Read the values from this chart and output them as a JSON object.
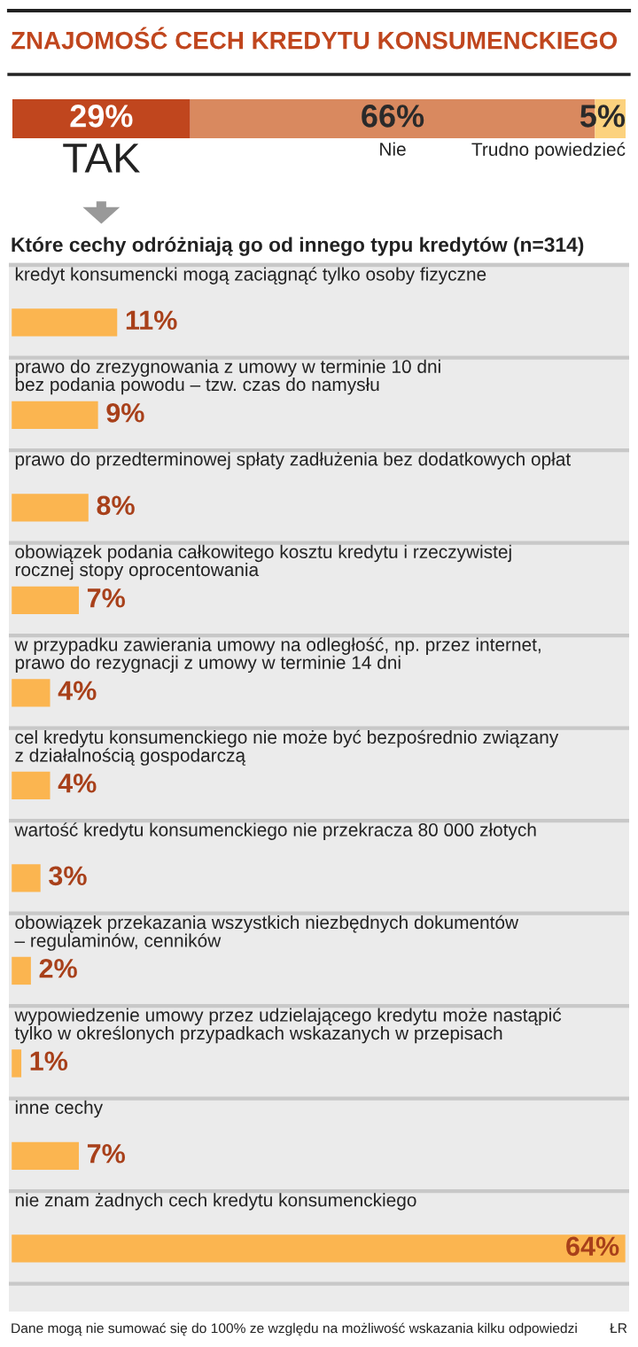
{
  "chart_data": [
    {
      "type": "bar",
      "orientation": "horizontal",
      "stacked": true,
      "title": "ZNAJOMOŚĆ CECH KREDYTU KONSUMENCKIEGO",
      "categories": [
        null
      ],
      "tick_labels": false,
      "grid": false,
      "legend": false,
      "series": [
        {
          "name": "TAK",
          "color": "#c0461e",
          "values": [
            29
          ],
          "value_labels": [
            "29%"
          ]
        },
        {
          "name": "Nie",
          "color": "#d9895f",
          "values": [
            66
          ],
          "value_labels": [
            "66%"
          ]
        },
        {
          "name": "Trudno powiedzieć",
          "color": "#fcd27e",
          "values": [
            5
          ],
          "value_labels": [
            "5%"
          ]
        }
      ]
    },
    {
      "type": "bar",
      "orientation": "horizontal",
      "title": "Które cechy odróżniają go od innego typu kredytów (n=314)",
      "tick_labels": false,
      "grid": false,
      "legend": false,
      "categories": [
        "kredyt konsumencki mogą zaciągnąć tylko osoby fizyczne",
        "prawo do zrezygnowania z umowy w terminie 10 dni\nbez podania powodu – tzw. czas do namysłu",
        "prawo do przedterminowej spłaty zadłużenia bez dodatkowych opłat",
        "obowiązek podania całkowitego kosztu kredytu i rzeczywistej\nrocznej stopy oprocentowania",
        "w przypadku zawierania umowy na odległość, np. przez internet,\nprawo do rezygnacji z umowy w terminie 14 dni",
        "cel kredytu konsumenckiego nie może być bezpośrednio związany\nz działalnością gospodarczą",
        "wartość kredytu konsumenckiego nie przekracza 80 000 złotych",
        "obowiązek przekazania wszystkich niezbędnych dokumentów\n– regulaminów, cenników",
        "wypowiedzenie umowy przez udzielającego kredytu może nastąpić\ntylko w określonych przypadkach wskazanych w przepisach",
        "inne cechy",
        "nie znam żadnych cech kredytu konsumenckiego"
      ],
      "values": [
        11,
        9,
        8,
        7,
        4,
        4,
        3,
        2,
        1,
        7,
        64
      ],
      "value_labels": [
        "11%",
        "9%",
        "8%",
        "7%",
        "4%",
        "4%",
        "3%",
        "2%",
        "1%",
        "7%",
        "64%"
      ],
      "color": "#fbb550",
      "annotations": [
        "Dane mogą nie sumować się do 100% ze względu na możliwość wskazania kilku odpowiedzi",
        "ŁR"
      ]
    }
  ]
}
